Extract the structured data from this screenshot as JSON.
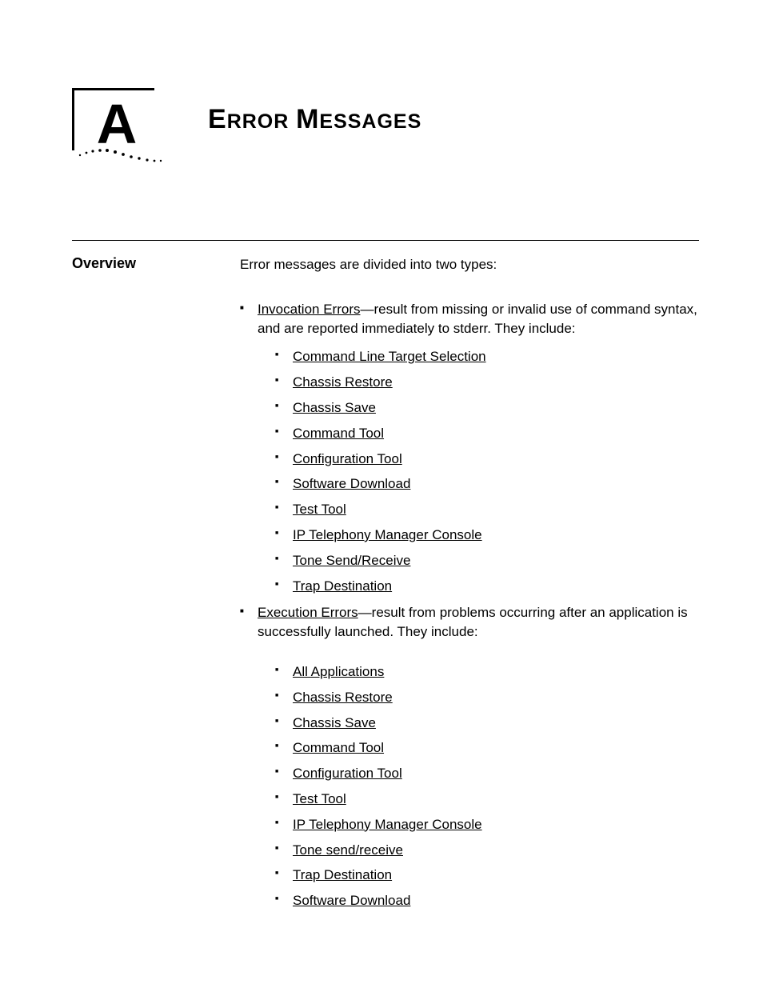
{
  "appendix_letter": "A",
  "title": "Error Messages",
  "section_label": "Overview",
  "intro_text": "Error messages are divided into two types:",
  "groups": [
    {
      "link": "Invocation Errors",
      "suffix": "—result from missing or invalid use of command syntax, and are reported immediately to stderr. They include:",
      "items": [
        "Command Line Target Selection",
        "Chassis Restore",
        "Chassis Save",
        "Command Tool",
        "Configuration Tool",
        "Software Download",
        "Test Tool",
        "IP Telephony Manager Console",
        "Tone Send/Receive",
        "Trap Destination"
      ]
    },
    {
      "link": "Execution Errors",
      "suffix": "—result from problems occurring after an application is successfully launched. They include:",
      "items": [
        "All Applications",
        "Chassis Restore",
        "Chassis Save",
        "Command Tool",
        "Configuration Tool",
        "Test Tool",
        "IP Telephony Manager Console",
        "Tone send/receive",
        "Trap Destination",
        "Software Download"
      ]
    }
  ]
}
